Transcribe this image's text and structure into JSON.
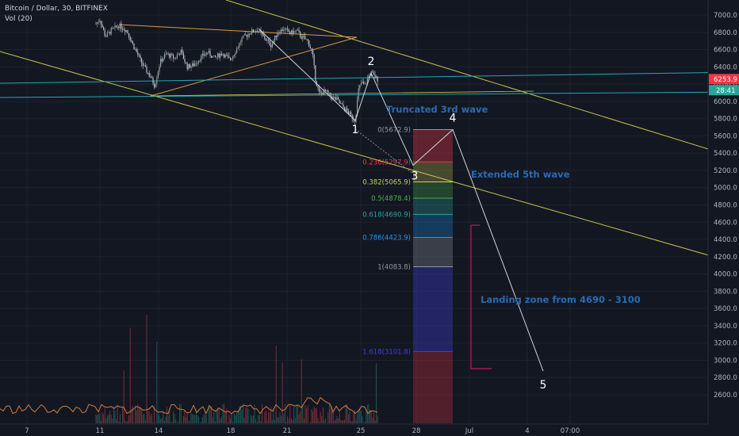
{
  "header": {
    "symbol": "Bitcoin / Dollar, 30, BITFINEX",
    "volume": "Vol (20)"
  },
  "price_axis": {
    "ticks": [
      "7000.0",
      "6800.0",
      "6600.0",
      "6400.0",
      "6200.0",
      "6000.0",
      "5800.0",
      "5600.0",
      "5400.0",
      "5200.0",
      "5000.0",
      "4800.0",
      "4600.0",
      "4400.0",
      "4200.0",
      "4000.0",
      "3800.0",
      "3600.0",
      "3400.0",
      "3200.0",
      "3000.0",
      "2800.0",
      "2600.0"
    ],
    "tick_values": [
      7000,
      6800,
      6600,
      6400,
      6200,
      6000,
      5800,
      5600,
      5400,
      5200,
      5000,
      4800,
      4600,
      4400,
      4200,
      4000,
      3800,
      3600,
      3400,
      3200,
      3000,
      2800,
      2600
    ],
    "last_price": "6253.9",
    "countdown": "28:41",
    "last_price_color": "#f23645",
    "countdown_color": "#26a69a"
  },
  "time_axis": {
    "labels": [
      "7",
      "11",
      "14",
      "18",
      "21",
      "25",
      "28",
      "Jul",
      "4",
      "07:00"
    ]
  },
  "chart_data": {
    "type": "candlestick",
    "symbol": "Bitcoin / Dollar",
    "interval": "30",
    "exchange": "BITFINEX",
    "price_axis_range": [
      2520,
      7120
    ],
    "fibonacci": {
      "levels": [
        {
          "ratio": "0",
          "price": 5672.9,
          "label": "0(5672.9)",
          "color": "#9598a1"
        },
        {
          "ratio": "0.236",
          "price": 5297.9,
          "label": "0.236(5297.9)",
          "color": "#f23645"
        },
        {
          "ratio": "0.382",
          "price": 5065.9,
          "label": "0.382(5065.9)",
          "color": "#c8d24b"
        },
        {
          "ratio": "0.5",
          "price": 4878.4,
          "label": "0.5(4878.4)",
          "color": "#4caf50"
        },
        {
          "ratio": "0.618",
          "price": 4690.9,
          "label": "0.618(4690.9)",
          "color": "#26a69a"
        },
        {
          "ratio": "0.786",
          "price": 4423.9,
          "label": "0.786(4423.9)",
          "color": "#2196f3"
        },
        {
          "ratio": "1",
          "price": 4083.8,
          "label": "1(4083.8)",
          "color": "#9598a1"
        },
        {
          "ratio": "1.618",
          "price": 3101.8,
          "label": "1.618(3101.8)",
          "color": "#3f3fd9"
        }
      ]
    },
    "elliott_wave_points": [
      {
        "label": "1",
        "price": 5780
      },
      {
        "label": "2",
        "price": 6330
      },
      {
        "label": "3",
        "price": 5260
      },
      {
        "label": "4",
        "price": 5672.9
      },
      {
        "label": "5",
        "price": 3100
      }
    ],
    "annotations": [
      {
        "text": "Truncated 3rd wave"
      },
      {
        "text": "Extended 5th wave"
      },
      {
        "text": "Landing zone from 4690 - 3100",
        "range": [
          3100,
          4690
        ]
      }
    ]
  }
}
